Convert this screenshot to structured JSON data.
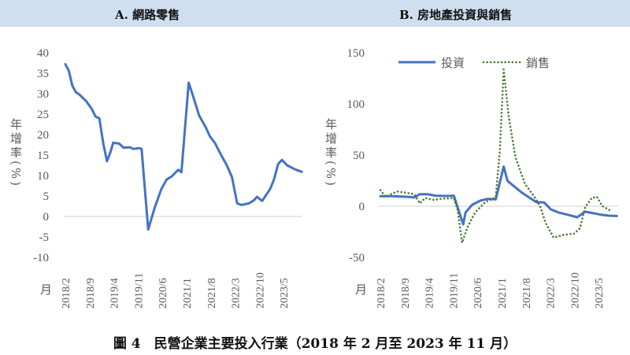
{
  "caption": "圖 4　民營企業主要投入行業（2018 年 2 月至 2023 年 11 月）",
  "colors": {
    "header_band": "#cfdff0",
    "investment": "#4472c4",
    "sales": "#4e7a33",
    "zero_line": "#d0d0d0",
    "axis_text": "#595959"
  },
  "chart_data": [
    {
      "type": "line",
      "title": "A. 網路零售",
      "ylabel": "年增率(%)",
      "xlabel": "月",
      "ylim": [
        -10,
        40
      ],
      "yticks": [
        -10,
        -5,
        0,
        5,
        10,
        15,
        20,
        25,
        30,
        35,
        40
      ],
      "x_start": "2018/2",
      "x_end": "2023/11",
      "x_unit": "month index from 2018/2",
      "xtick_labels": [
        "2018/2",
        "2018/9",
        "2019/4",
        "2019/11",
        "2020/6",
        "2021/1",
        "2021/8",
        "2022/3",
        "2022/10",
        "2023/5"
      ],
      "xtick_index": [
        0,
        7,
        14,
        21,
        28,
        35,
        42,
        49,
        56,
        63
      ],
      "grid": false,
      "series": [
        {
          "name": "網路零售",
          "style": "solid",
          "x": [
            0,
            1,
            2,
            3,
            4,
            6,
            7.6,
            8.7,
            9.8,
            11,
            12,
            13,
            13.8,
            15.5,
            16.8,
            18.6,
            19.7,
            21.2,
            22,
            23.9,
            25.8,
            27.7,
            29.2,
            30.7,
            32.6,
            33.5,
            35.6,
            36.7,
            38.6,
            40.5,
            41.7,
            43.2,
            44.7,
            46.6,
            48.1,
            49.6,
            50.8,
            53,
            54.5,
            55.3,
            56.8,
            59.1,
            60.2,
            61.4,
            62.5,
            64,
            66.3,
            68.2
          ],
          "y": [
            37.2,
            35.6,
            32,
            30.4,
            29.8,
            28.2,
            26.3,
            24.4,
            24,
            17.6,
            13.5,
            15.7,
            18,
            17.8,
            16.8,
            16.9,
            16.5,
            16.7,
            16.5,
            -3.2,
            2.2,
            6.7,
            9,
            9.8,
            11.4,
            10.8,
            32.7,
            29.8,
            24.7,
            21.8,
            19.6,
            17.9,
            15.4,
            12.5,
            9.6,
            3.2,
            2.8,
            3.2,
            4,
            4.8,
            3.8,
            6.7,
            9,
            12.8,
            13.8,
            12.5,
            11.5,
            10.9
          ]
        }
      ]
    },
    {
      "type": "line",
      "title": "B. 房地產投資與銷售",
      "ylabel": "年增率(%)",
      "xlabel": "月",
      "ylim": [
        -50,
        150
      ],
      "yticks": [
        -50,
        0,
        50,
        100,
        150
      ],
      "x_start": "2018/2",
      "x_end": "2023/11",
      "x_unit": "month index from 2018/2",
      "xtick_labels": [
        "2018/2",
        "2018/9",
        "2019/4",
        "2019/11",
        "2020/6",
        "2021/1",
        "2021/8",
        "2022/3",
        "2022/10",
        "2023/5"
      ],
      "xtick_index": [
        0,
        7,
        14,
        21,
        28,
        35,
        42,
        49,
        56,
        63
      ],
      "legend": "top",
      "grid": false,
      "series": [
        {
          "name": "投資",
          "style": "solid",
          "x": [
            0,
            3.8,
            7.6,
            9.8,
            11.4,
            13.6,
            15.9,
            18.9,
            21.2,
            22.3,
            23.9,
            24.6,
            26.5,
            28.8,
            31,
            33.3,
            35.6,
            36.7,
            38.6,
            40.9,
            43.2,
            45,
            47.3,
            49.2,
            51.5,
            54.5,
            56.8,
            59.1,
            60.6,
            63.6,
            65.9,
            68.2
          ],
          "y": [
            9.8,
            9.8,
            9.2,
            8.7,
            11.8,
            11.8,
            10.3,
            10,
            10.3,
            -1,
            -17.7,
            -6,
            1.5,
            5.4,
            7.2,
            6.7,
            38.8,
            24.7,
            19.5,
            13.1,
            8,
            4.1,
            3.6,
            -3.1,
            -6.2,
            -8.7,
            -10.8,
            -5.4,
            -6.2,
            -8.2,
            -9.2,
            -9.5
          ]
        },
        {
          "name": "銷售",
          "style": "dotted",
          "x": [
            0,
            1.5,
            3,
            4.9,
            7.6,
            9.8,
            11.4,
            12.9,
            15.2,
            18.2,
            21.2,
            22.3,
            23.6,
            25,
            27.3,
            30.3,
            33.3,
            34.5,
            35.6,
            37.1,
            39,
            41.7,
            44.7,
            46.2,
            47.7,
            50,
            53,
            56,
            57.6,
            59.1,
            61,
            62.5,
            64,
            66.7
          ],
          "y": [
            15.7,
            9.2,
            11.8,
            14.4,
            13.1,
            11.8,
            2.8,
            8,
            6.2,
            7.4,
            8,
            -3.6,
            -35.7,
            -21.6,
            -6.2,
            4.1,
            8.5,
            55.5,
            133.8,
            86.3,
            47.8,
            22.1,
            8,
            -1,
            -16.4,
            -30.6,
            -28,
            -26.7,
            -21.6,
            -1,
            8,
            9.2,
            0.3,
            -4.9
          ]
        }
      ]
    }
  ]
}
